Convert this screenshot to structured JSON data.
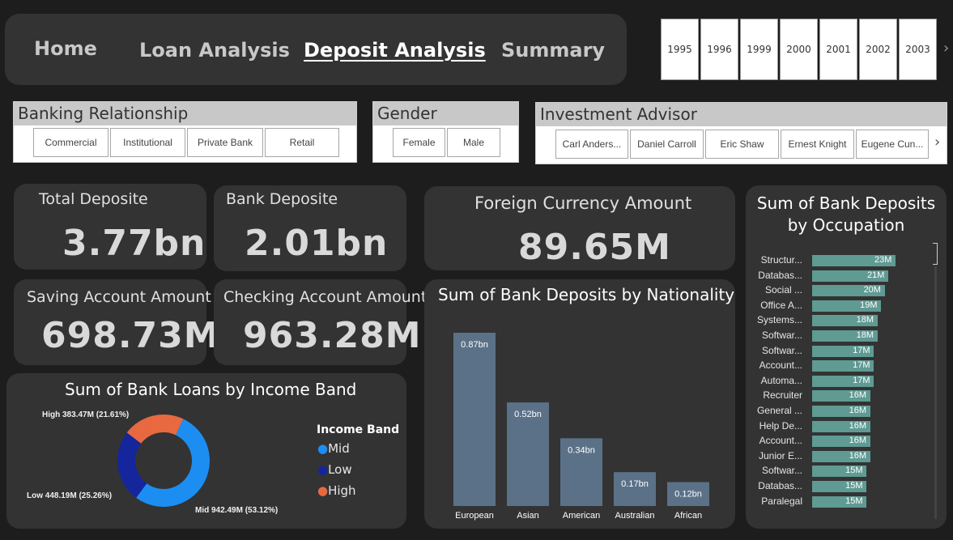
{
  "nav": {
    "items": [
      {
        "label": "Home"
      },
      {
        "label": "Loan Analysis"
      },
      {
        "label": "Deposit Analysis"
      },
      {
        "label": "Summary"
      }
    ],
    "active": "Deposit Analysis"
  },
  "years": [
    "1995",
    "1996",
    "1999",
    "2000",
    "2001",
    "2002",
    "2003"
  ],
  "slicers": {
    "banking_relationship": {
      "title": "Banking Relationship",
      "options": [
        "Commercial",
        "Institutional",
        "Private Bank",
        "Retail"
      ]
    },
    "gender": {
      "title": "Gender",
      "options": [
        "Female",
        "Male"
      ]
    },
    "investment_advisor": {
      "title": "Investment Advisor",
      "options": [
        "Carl Anders...",
        "Daniel Carroll",
        "Eric Shaw",
        "Ernest Knight",
        "Eugene Cun..."
      ]
    }
  },
  "cards": {
    "total_deposit": {
      "label": "Total Deposite",
      "value": "3.77bn"
    },
    "bank_deposit": {
      "label": "Bank Deposite",
      "value": "2.01bn"
    },
    "foreign_currency": {
      "label": "Foreign Currency Amount",
      "value": "89.65M"
    },
    "saving_account": {
      "label": "Saving Account Amount",
      "value": "698.73M"
    },
    "checking_account": {
      "label": "Checking Account Amount",
      "value": "963.28M"
    }
  },
  "colors": {
    "mid": "#1c8ef2",
    "low": "#15259c",
    "high": "#e8693f",
    "nationality_bar": "#5b7188",
    "occupation_bar": "#5f9a93"
  },
  "chart_data": [
    {
      "type": "pie",
      "title": "Sum of Bank Loans by Income Band",
      "legend_title": "Income Band",
      "legend_position": "right",
      "categories": [
        "Mid",
        "Low",
        "High"
      ],
      "values": [
        942.49,
        448.19,
        383.47
      ],
      "percents": [
        53.12,
        25.26,
        21.61
      ],
      "data_labels": [
        "Mid 942.49M (53.12%)",
        "Low 448.19M (25.26%)",
        "High 383.47M (21.61%)"
      ]
    },
    {
      "type": "bar",
      "title": "Sum of Bank Deposits by Nationality",
      "categories": [
        "European",
        "Asian",
        "American",
        "Australian",
        "African"
      ],
      "values": [
        0.87,
        0.52,
        0.34,
        0.17,
        0.12
      ],
      "data_labels": [
        "0.87bn",
        "0.52bn",
        "0.34bn",
        "0.17bn",
        "0.12bn"
      ],
      "ylim": [
        0,
        0.87
      ]
    },
    {
      "type": "bar",
      "orientation": "horizontal",
      "title": "Sum of Bank Deposits by Occupation",
      "categories": [
        "Structur...",
        "Databas...",
        "Social ...",
        "Office A...",
        "Systems...",
        "Softwar...",
        "Softwar...",
        "Account...",
        "Automa...",
        "Recruiter",
        "General ...",
        "Help De...",
        "Account...",
        "Junior E...",
        "Softwar...",
        "Databas...",
        "Paralegal"
      ],
      "values": [
        23,
        21,
        20,
        19,
        18,
        18,
        17,
        17,
        17,
        16,
        16,
        16,
        16,
        16,
        15,
        15,
        15
      ],
      "data_labels": [
        "23M",
        "21M",
        "20M",
        "19M",
        "18M",
        "18M",
        "17M",
        "17M",
        "17M",
        "16M",
        "16M",
        "16M",
        "16M",
        "16M",
        "15M",
        "15M",
        "15M"
      ],
      "xlim": [
        0,
        23
      ]
    }
  ]
}
